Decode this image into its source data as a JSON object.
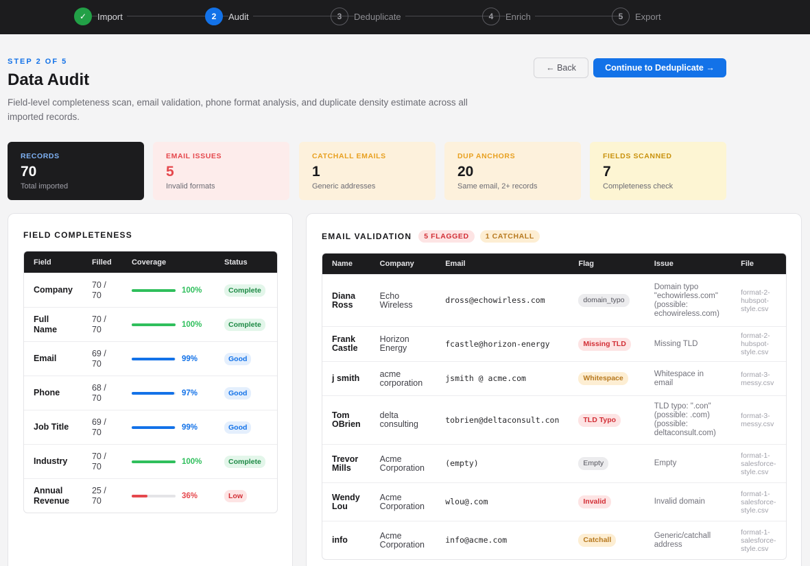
{
  "stepper": {
    "steps": [
      {
        "num": "✓",
        "label": "Import",
        "state": "done"
      },
      {
        "num": "2",
        "label": "Audit",
        "state": "active"
      },
      {
        "num": "3",
        "label": "Deduplicate",
        "state": "pending"
      },
      {
        "num": "4",
        "label": "Enrich",
        "state": "pending"
      },
      {
        "num": "5",
        "label": "Export",
        "state": "pending"
      }
    ]
  },
  "header": {
    "eyebrow": "STEP 2 OF 5",
    "title": "Data Audit",
    "subtitle": "Field-level completeness scan, email validation, phone format analysis, and duplicate density estimate across all imported records.",
    "back_label": "← Back",
    "continue_label": "Continue to Deduplicate →"
  },
  "stats": [
    {
      "label": "RECORDS",
      "value": "70",
      "desc": "Total imported"
    },
    {
      "label": "EMAIL ISSUES",
      "value": "5",
      "desc": "Invalid formats"
    },
    {
      "label": "CATCHALL EMAILS",
      "value": "1",
      "desc": "Generic addresses"
    },
    {
      "label": "DUP ANCHORS",
      "value": "20",
      "desc": "Same email, 2+ records"
    },
    {
      "label": "FIELDS SCANNED",
      "value": "7",
      "desc": "Completeness check"
    }
  ],
  "completeness": {
    "title": "FIELD COMPLETENESS",
    "columns": [
      "Field",
      "Filled",
      "Coverage",
      "Status"
    ],
    "rows": [
      {
        "field": "Company",
        "filled": "70 / 70",
        "pct": "100%",
        "fill": 1.0,
        "status": "Complete"
      },
      {
        "field": "Full Name",
        "filled": "70 / 70",
        "pct": "100%",
        "fill": 1.0,
        "status": "Complete"
      },
      {
        "field": "Email",
        "filled": "69 / 70",
        "pct": "99%",
        "fill": 0.99,
        "status": "Good"
      },
      {
        "field": "Phone",
        "filled": "68 / 70",
        "pct": "97%",
        "fill": 0.97,
        "status": "Good"
      },
      {
        "field": "Job Title",
        "filled": "69 / 70",
        "pct": "99%",
        "fill": 0.99,
        "status": "Good"
      },
      {
        "field": "Industry",
        "filled": "70 / 70",
        "pct": "100%",
        "fill": 1.0,
        "status": "Complete"
      },
      {
        "field": "Annual Revenue",
        "filled": "25 / 70",
        "pct": "36%",
        "fill": 0.36,
        "status": "Low"
      }
    ]
  },
  "email_validation": {
    "title": "EMAIL VALIDATION",
    "flagged_pill": "5 FLAGGED",
    "catchall_pill": "1 CATCHALL",
    "columns": [
      "Name",
      "Company",
      "Email",
      "Flag",
      "Issue",
      "File"
    ],
    "rows": [
      {
        "name": "Diana Ross",
        "company": "Echo Wireless",
        "email": "dross@echowirless.com",
        "flag": "domain_typo",
        "flag_kind": "neutral",
        "issue": "Domain typo \"echowirless.com\" (possible: echowireless.com)",
        "file": "format-2-hubspot-style.csv",
        "h": 76
      },
      {
        "name": "Frank Castle",
        "company": "Horizon Energy",
        "email": "fcastle@horizon-energy",
        "flag": "Missing TLD",
        "flag_kind": "red",
        "issue": "Missing TLD",
        "file": "format-2-hubspot-style.csv",
        "h": 51
      },
      {
        "name": "j smith",
        "company": "acme corporation",
        "email": "jsmith @ acme.com",
        "flag": "Whitespace",
        "flag_kind": "amber",
        "issue": "Whitespace in email",
        "file": "format-3-messy.csv",
        "h": 50
      },
      {
        "name": "Tom OBrien",
        "company": "delta consulting",
        "email": "tobrien@deltaconsult.con",
        "flag": "TLD Typo",
        "flag_kind": "red",
        "issue": "TLD typo: \".con\" (possible: .com) (possible: deltaconsult.com)",
        "file": "format-3-messy.csv",
        "h": 71
      },
      {
        "name": "Trevor Mills",
        "company": "Acme Corporation",
        "email": "(empty)",
        "flag": "Empty",
        "flag_kind": "neutral",
        "issue": "Empty",
        "file": "format-1-salesforce-style.csv",
        "h": 56
      },
      {
        "name": "Wendy Lou",
        "company": "Acme Corporation",
        "email": "wlou@.com",
        "flag": "Invalid",
        "flag_kind": "red",
        "issue": "Invalid domain",
        "file": "format-1-salesforce-style.csv",
        "h": 56
      },
      {
        "name": "info",
        "company": "Acme Corporation",
        "email": "info@acme.com",
        "flag": "Catchall",
        "flag_kind": "amber",
        "issue": "Generic/catchall address",
        "file": "format-1-salesforce-style.csv",
        "h": 56
      }
    ]
  }
}
